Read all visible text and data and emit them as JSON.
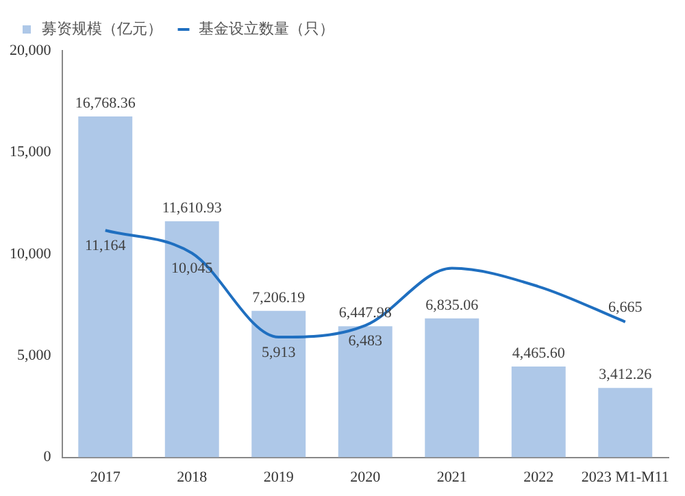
{
  "chart_data": {
    "type": "bar",
    "categories": [
      "2017",
      "2018",
      "2019",
      "2020",
      "2021",
      "2022",
      "2023 M1-M11"
    ],
    "series": [
      {
        "name": "募资规模（亿元）",
        "color": "#aec8e8",
        "values": [
          16768.36,
          11610.93,
          7206.19,
          6447.98,
          6835.06,
          4465.6,
          3412.26
        ],
        "value_labels": [
          "16,768.36",
          "11,610.93",
          "7,206.19",
          "6,447.98",
          "6,835.06",
          "4,465.60",
          "3,412.26"
        ]
      },
      {
        "name": "基金设立数量（只）",
        "type": "line",
        "color": "#1f6fc0",
        "values": [
          11164,
          10045,
          5913,
          6483,
          9300,
          8400,
          6665
        ],
        "value_labels": [
          "11,164",
          "10,045",
          "5,913",
          "6,483",
          null,
          null,
          "6,665"
        ]
      }
    ],
    "ylim": [
      0,
      20000
    ],
    "yticks": [
      {
        "value": 0,
        "label": "0"
      },
      {
        "value": 5000,
        "label": "5,000"
      },
      {
        "value": 10000,
        "label": "10,000"
      },
      {
        "value": 15000,
        "label": "15,000"
      },
      {
        "value": 20000,
        "label": "20,000"
      }
    ],
    "grid": false,
    "legend": "top left",
    "marker": "none"
  }
}
